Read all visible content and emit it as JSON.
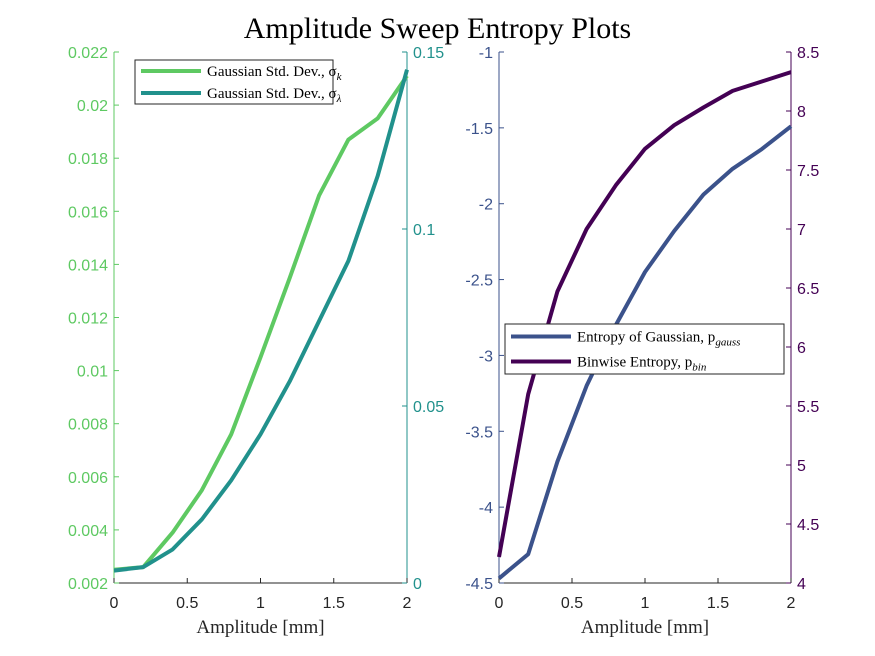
{
  "title": "Amplitude Sweep Entropy Plots",
  "colors": {
    "green": "#5ec962",
    "teal": "#21918c",
    "navy": "#3b528b",
    "purple": "#440154",
    "axis": "#262626"
  },
  "chart_data": [
    {
      "type": "line",
      "xlabel": "Amplitude [mm]",
      "xlim": [
        0,
        2
      ],
      "xticks": [
        0,
        0.5,
        1,
        1.5,
        2
      ],
      "xtick_labels": [
        "0",
        "0.5",
        "1",
        "1.5",
        "2"
      ],
      "x": [
        0,
        0.2,
        0.4,
        0.6,
        0.8,
        1.0,
        1.2,
        1.4,
        1.6,
        1.8,
        2.0
      ],
      "left_axis": {
        "ylim": [
          0.002,
          0.022
        ],
        "yticks": [
          0.002,
          0.004,
          0.006,
          0.008,
          0.01,
          0.012,
          0.014,
          0.016,
          0.018,
          0.02,
          0.022
        ],
        "ytick_labels": [
          "0.002",
          "0.004",
          "0.006",
          "0.008",
          "0.01",
          "0.012",
          "0.014",
          "0.016",
          "0.018",
          "0.02",
          "0.022"
        ],
        "color": "#5ec962"
      },
      "right_axis": {
        "ylim": [
          0,
          0.15
        ],
        "yticks": [
          0,
          0.05,
          0.1,
          0.15
        ],
        "ytick_labels": [
          "0",
          "0.05",
          "0.1",
          "0.15"
        ],
        "color": "#21918c"
      },
      "series": [
        {
          "name": "Gaussian Std. Dev., σk",
          "legend_base": "Gaussian Std. Dev., σ",
          "legend_sub": "k",
          "axis": "left",
          "color": "#5ec962",
          "values": [
            0.0025,
            0.0026,
            0.0039,
            0.0055,
            0.0076,
            0.0105,
            0.0135,
            0.0166,
            0.0187,
            0.0195,
            0.0211
          ]
        },
        {
          "name": "Gaussian Std. Dev., σλ",
          "legend_base": "Gaussian Std. Dev., σ",
          "legend_sub": "λ",
          "axis": "right",
          "color": "#21918c",
          "values": [
            0.0035,
            0.0045,
            0.0095,
            0.018,
            0.029,
            0.042,
            0.057,
            0.074,
            0.091,
            0.115,
            0.145
          ]
        }
      ],
      "legend_position": "top-right"
    },
    {
      "type": "line",
      "xlabel": "Amplitude [mm]",
      "xlim": [
        0,
        2
      ],
      "xticks": [
        0,
        0.5,
        1,
        1.5,
        2
      ],
      "xtick_labels": [
        "0",
        "0.5",
        "1",
        "1.5",
        "2"
      ],
      "x": [
        0,
        0.2,
        0.4,
        0.6,
        0.8,
        1.0,
        1.2,
        1.4,
        1.6,
        1.8,
        2.0
      ],
      "left_axis": {
        "ylim": [
          -4.5,
          -1
        ],
        "yticks": [
          -4.5,
          -4,
          -3.5,
          -3,
          -2.5,
          -2,
          -1.5,
          -1
        ],
        "ytick_labels": [
          "-4.5",
          "-4",
          "-3.5",
          "-3",
          "-2.5",
          "-2",
          "-1.5",
          "-1"
        ],
        "color": "#3b528b"
      },
      "right_axis": {
        "ylim": [
          4,
          8.5
        ],
        "yticks": [
          4,
          4.5,
          5,
          5.5,
          6,
          6.5,
          7,
          7.5,
          8,
          8.5
        ],
        "ytick_labels": [
          "4",
          "4.5",
          "5",
          "5.5",
          "6",
          "6.5",
          "7",
          "7.5",
          "8",
          "8.5"
        ],
        "color": "#440154"
      },
      "series": [
        {
          "name": "Entropy of Gaussian, pgauss",
          "legend_base": "Entropy of Gaussian, p",
          "legend_sub": "gauss",
          "axis": "left",
          "color": "#3b528b",
          "values": [
            -4.47,
            -4.31,
            -3.7,
            -3.2,
            -2.8,
            -2.45,
            -2.18,
            -1.94,
            -1.77,
            -1.64,
            -1.49
          ]
        },
        {
          "name": "Binwise Entropy, pbin",
          "legend_base": "Binwise Entropy, p",
          "legend_sub": "bin",
          "axis": "right",
          "color": "#440154",
          "values": [
            4.22,
            5.6,
            6.47,
            7.0,
            7.37,
            7.68,
            7.88,
            8.03,
            8.17,
            8.25,
            8.33
          ]
        }
      ],
      "legend_position": "middle-right"
    }
  ]
}
